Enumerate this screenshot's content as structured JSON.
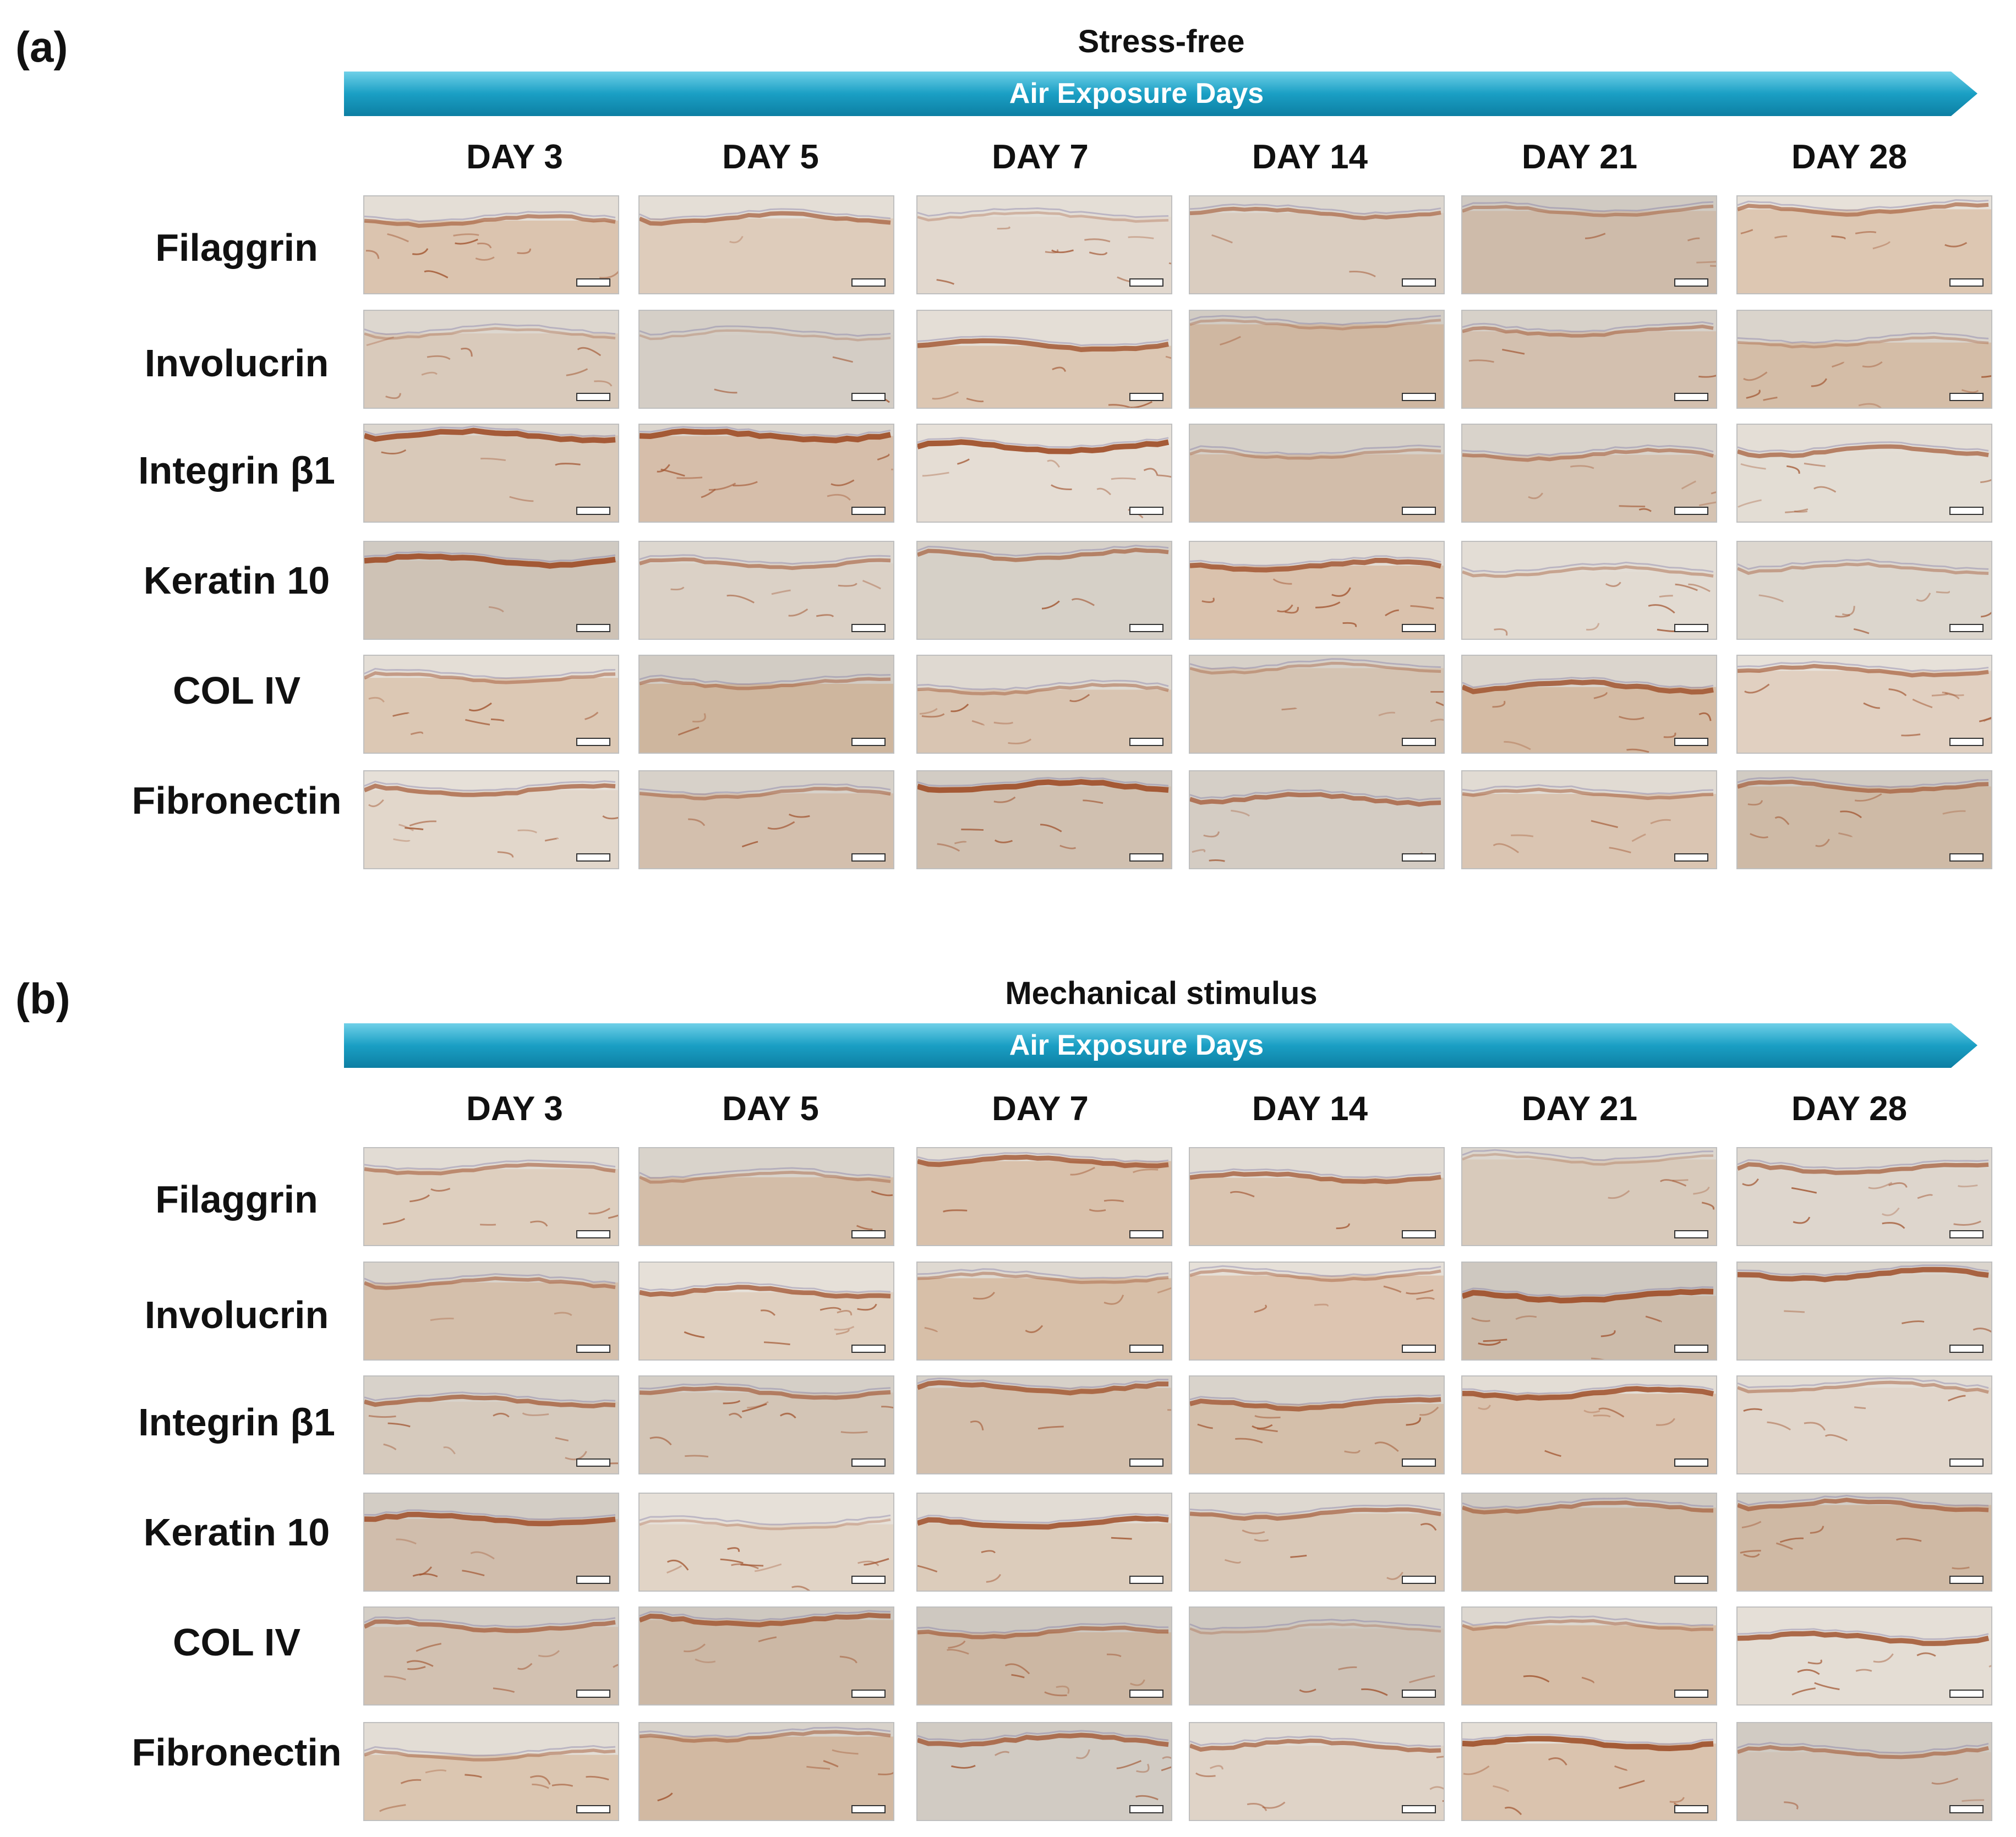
{
  "panels": [
    {
      "letter": "(a)",
      "condition": "Stress-free",
      "arrow_label": "Air Exposure Days",
      "days": [
        "DAY 3",
        "DAY 5",
        "DAY 7",
        "DAY 14",
        "DAY 21",
        "DAY 28"
      ],
      "markers": [
        "Filaggrin",
        "Involucrin",
        "Integrin β1",
        "Keratin 10",
        "COL IV",
        "Fibronectin"
      ]
    },
    {
      "letter": "(b)",
      "condition": "Mechanical stimulus",
      "arrow_label": "Air Exposure Days",
      "days": [
        "DAY 3",
        "DAY 5",
        "DAY 7",
        "DAY 14",
        "DAY 21",
        "DAY 28"
      ],
      "markers": [
        "Filaggrin",
        "Involucrin",
        "Integrin β1",
        "Keratin 10",
        "COL IV",
        "Fibronectin"
      ]
    }
  ],
  "colors": {
    "arrow": "#1a9fc4",
    "arrow_light": "#55c3df",
    "tissue_background": "#e6e1da",
    "stain": "#a0522d",
    "hematoxylin": "#6f6aa0"
  },
  "icons": [
    "right-arrow-icon",
    "scale-bar-icon"
  ]
}
